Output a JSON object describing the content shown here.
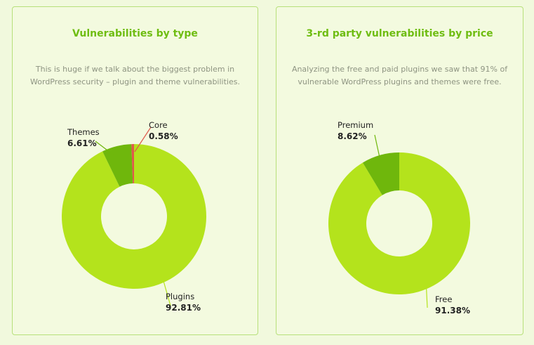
{
  "chart_data": [
    {
      "type": "pie",
      "donut": true,
      "title": "Vulnerabilities by type",
      "subtitle": "This is huge if we talk about the biggest problem in WordPress security – plugin and theme vulnerabilities.",
      "slices": [
        {
          "label": "Plugins",
          "value": 92.81,
          "value_label": "92.81%",
          "color": "#b4e31c"
        },
        {
          "label": "Themes",
          "value": 6.61,
          "value_label": "6.61%",
          "color": "#6fb70c"
        },
        {
          "label": "Core",
          "value": 0.58,
          "value_label": "0.58%",
          "color": "#e0584a"
        }
      ]
    },
    {
      "type": "pie",
      "donut": true,
      "title": "3-rd party vulnerabilities by price",
      "subtitle": "Analyzing the free and paid plugins we saw that 91% of vulnerable WordPress plugins and themes were free.",
      "slices": [
        {
          "label": "Free",
          "value": 91.38,
          "value_label": "91.38%",
          "color": "#b4e31c"
        },
        {
          "label": "Premium",
          "value": 8.62,
          "value_label": "8.62%",
          "color": "#6fb70c"
        }
      ]
    }
  ]
}
